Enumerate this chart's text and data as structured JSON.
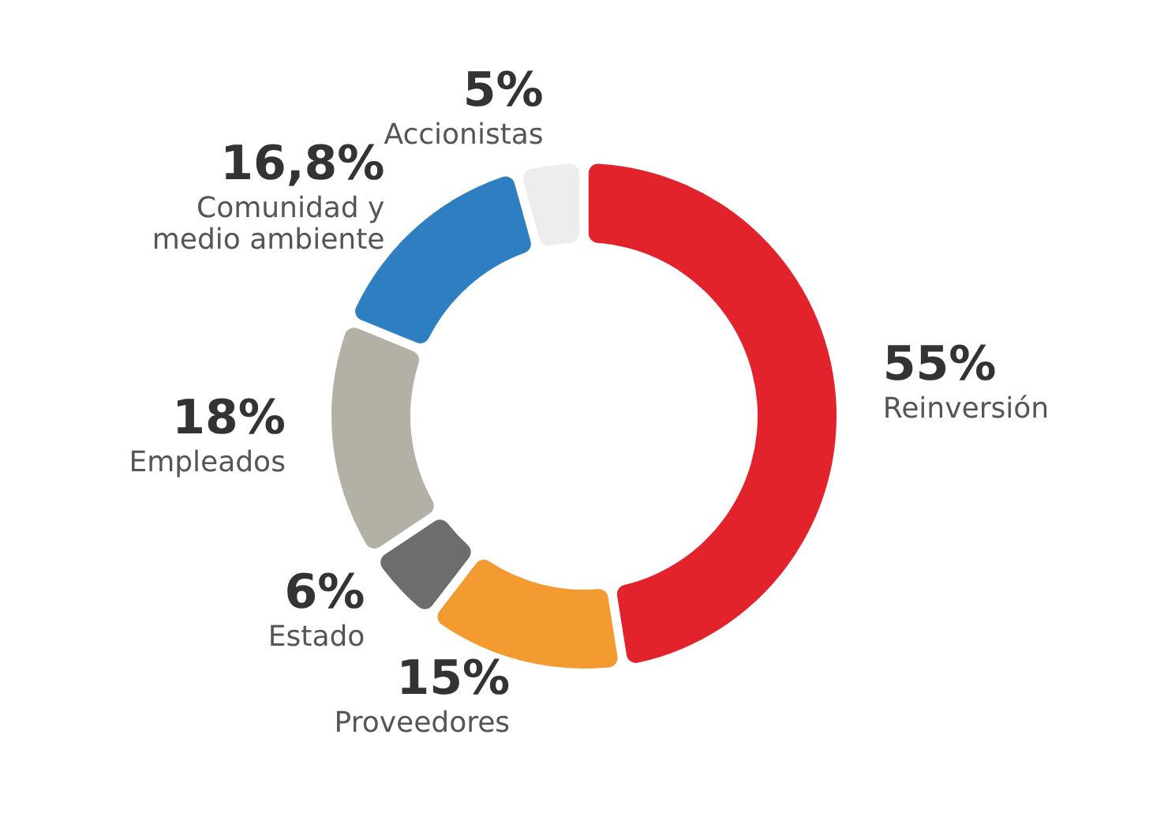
{
  "chart_data": {
    "type": "donut",
    "categories": [
      "Reinversión",
      "Proveedores",
      "Estado",
      "Empleados",
      "Comunidad y medio ambiente",
      "Accionistas"
    ],
    "values": [
      55,
      15,
      6,
      18,
      16.8,
      5
    ],
    "value_labels": [
      "55%",
      "15%",
      "6%",
      "18%",
      "16,8%",
      "5%"
    ],
    "colors": [
      "#e3232c",
      "#f39a30",
      "#6d6d6d",
      "#b3b0a5",
      "#2d7fc1",
      "#ededed"
    ]
  }
}
